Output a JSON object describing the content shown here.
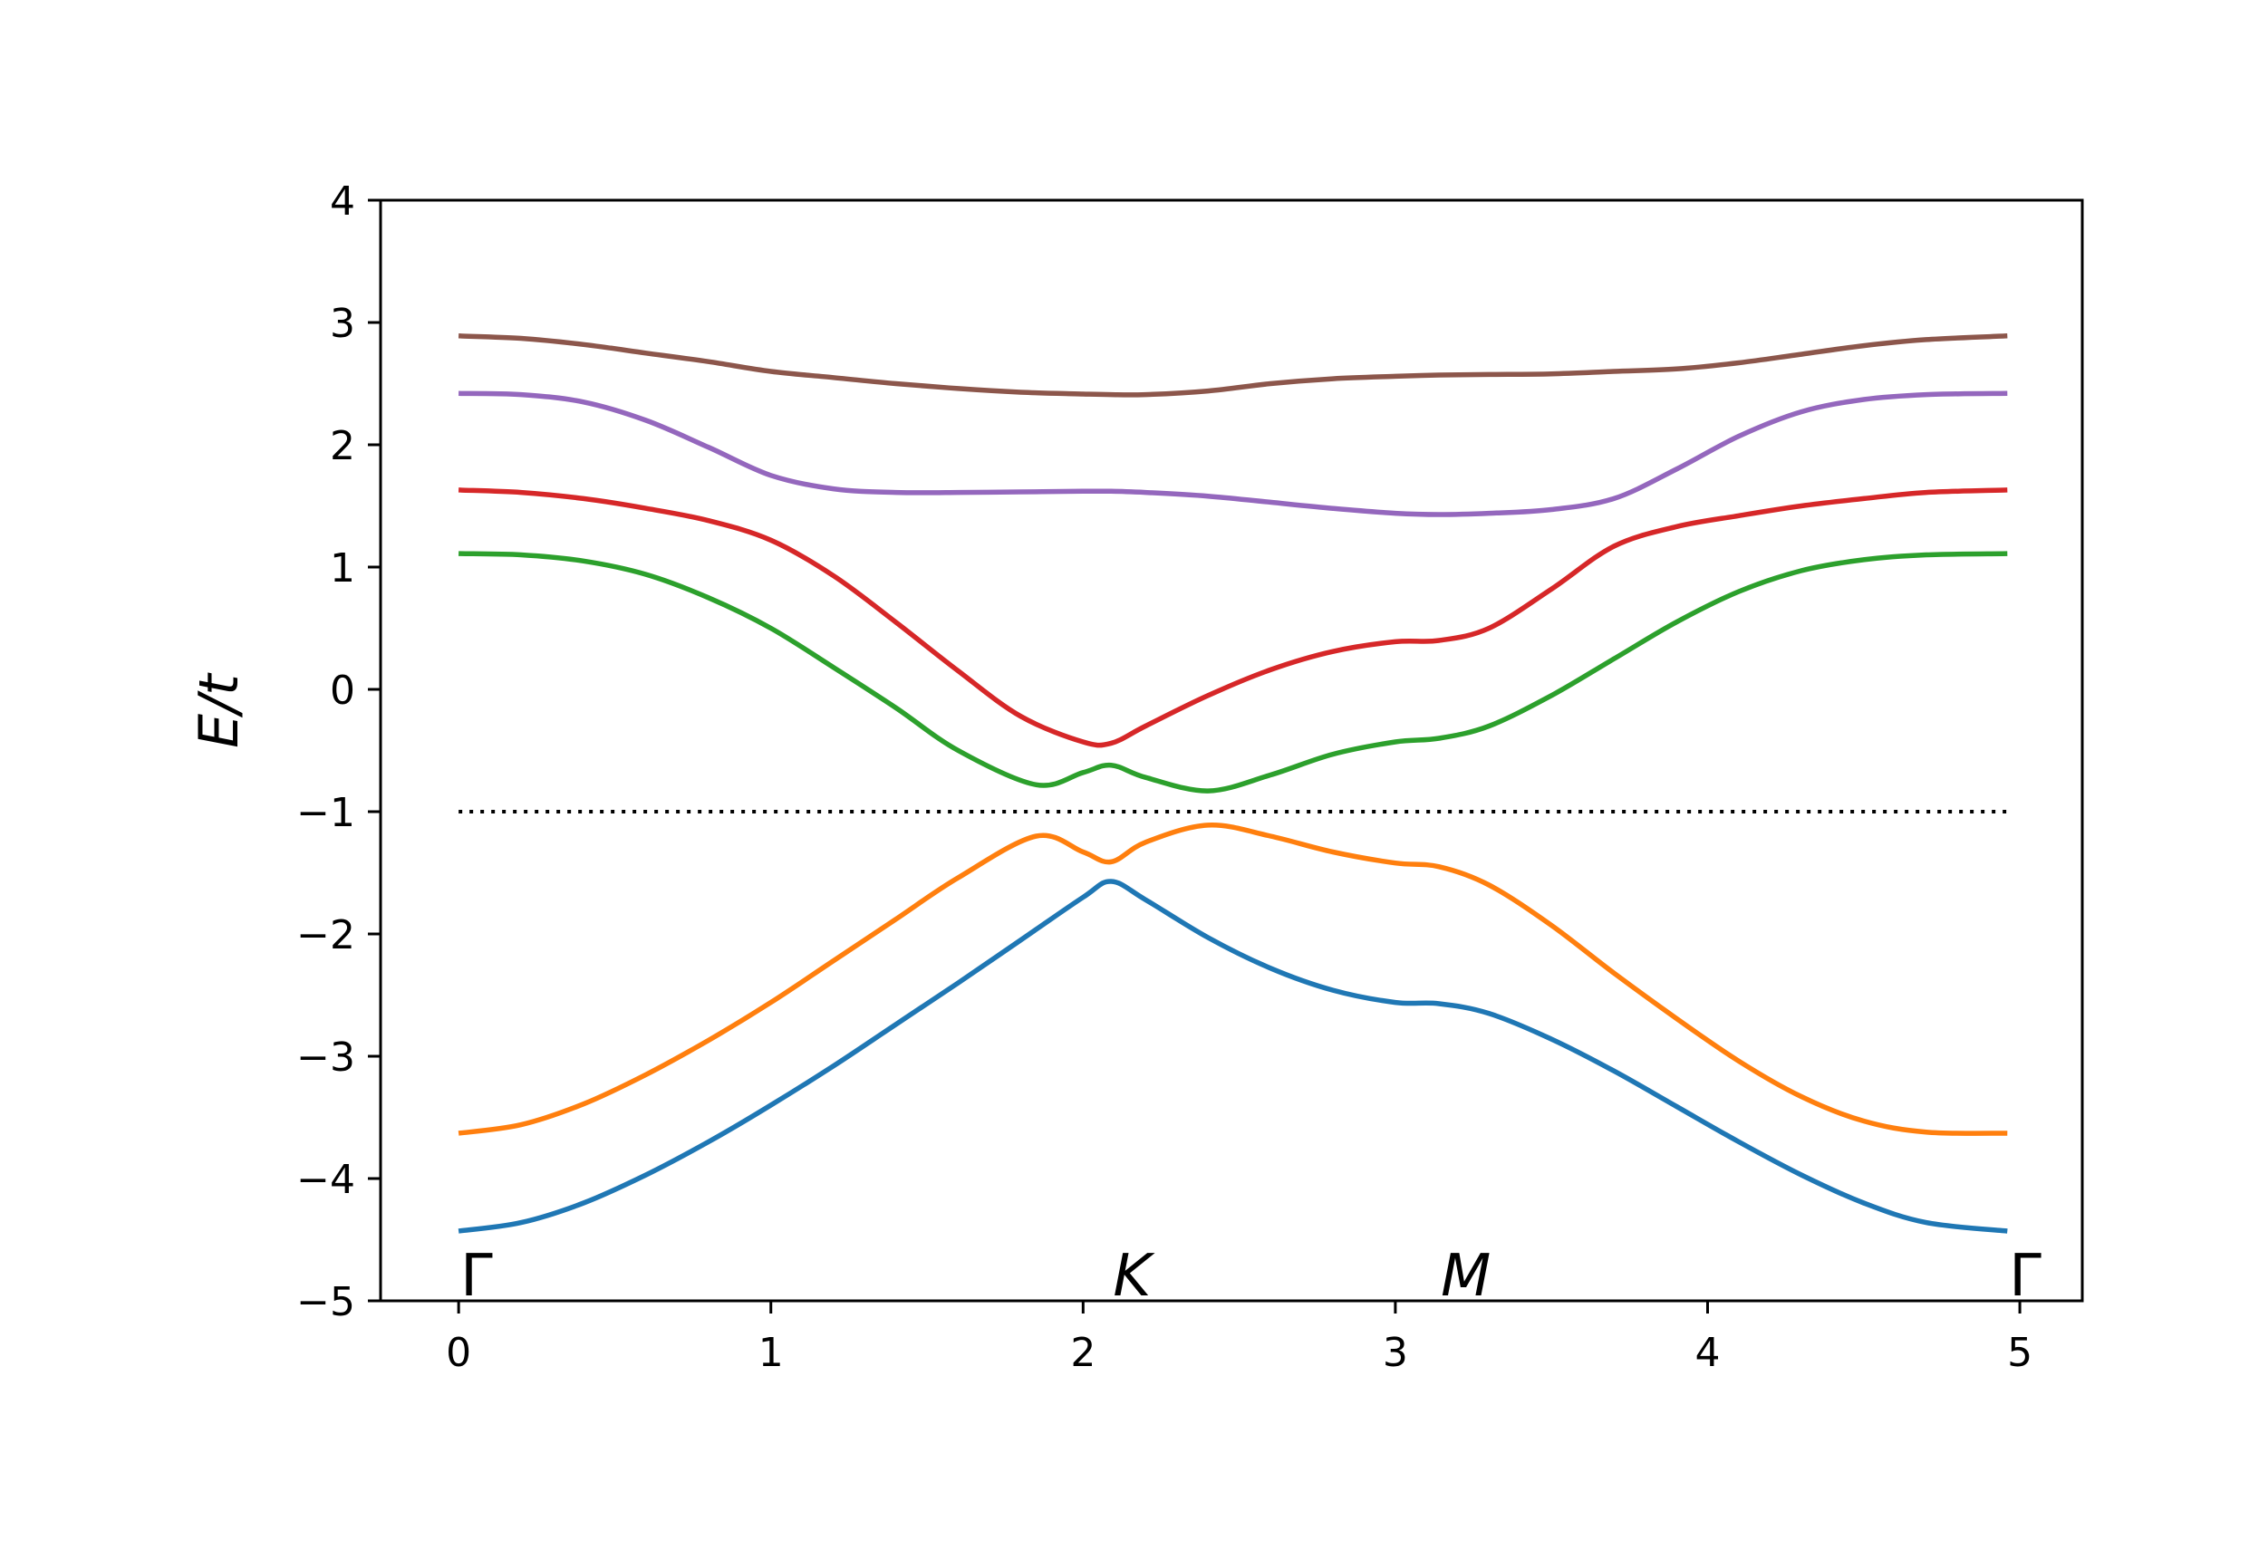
{
  "chart_data": {
    "type": "line",
    "title": "",
    "xlabel": "",
    "ylabel": "E/t",
    "xlim": [
      -0.25,
      5.2
    ],
    "ylim": [
      -5,
      4
    ],
    "xticks": [
      "0",
      "1",
      "2",
      "3",
      "4",
      "5"
    ],
    "yticks": [
      "−5",
      "−4",
      "−3",
      "−2",
      "−1",
      "0",
      "1",
      "2",
      "3",
      "4"
    ],
    "grid": false,
    "legend": "none",
    "kpoints": [
      {
        "label": "Γ",
        "x": 0.0
      },
      {
        "label": "K",
        "x": 2.09
      },
      {
        "label": "M",
        "x": 3.14
      },
      {
        "label": "Γ",
        "x": 4.96
      }
    ],
    "reference_line": {
      "y": -1.0,
      "x_range": [
        0.0,
        4.96
      ],
      "style": "dotted",
      "color": "#000000"
    },
    "series": [
      {
        "color": "#1f77b4",
        "x": [
          0.0,
          0.2,
          0.4,
          0.6,
          0.8,
          1.0,
          1.2,
          1.4,
          1.6,
          1.8,
          2.0,
          2.09,
          2.2,
          2.4,
          2.6,
          2.8,
          3.0,
          3.14,
          3.3,
          3.5,
          3.7,
          3.9,
          4.1,
          4.3,
          4.5,
          4.7,
          4.96
        ],
        "y": [
          -4.43,
          -4.36,
          -4.2,
          -3.97,
          -3.7,
          -3.4,
          -3.08,
          -2.74,
          -2.4,
          -2.05,
          -1.7,
          -1.57,
          -1.72,
          -2.03,
          -2.28,
          -2.46,
          -2.56,
          -2.57,
          -2.65,
          -2.86,
          -3.12,
          -3.41,
          -3.7,
          -3.97,
          -4.2,
          -4.36,
          -4.43
        ]
      },
      {
        "color": "#ff7f0e",
        "x": [
          0.0,
          0.2,
          0.4,
          0.6,
          0.8,
          1.0,
          1.2,
          1.4,
          1.6,
          1.85,
          2.0,
          2.09,
          2.2,
          2.4,
          2.6,
          2.8,
          3.0,
          3.14,
          3.3,
          3.5,
          3.7,
          3.9,
          4.1,
          4.3,
          4.5,
          4.7,
          4.96
        ],
        "y": [
          -3.63,
          -3.56,
          -3.39,
          -3.15,
          -2.87,
          -2.56,
          -2.22,
          -1.88,
          -1.54,
          -1.2,
          -1.33,
          -1.41,
          -1.25,
          -1.11,
          -1.2,
          -1.33,
          -1.42,
          -1.45,
          -1.6,
          -1.93,
          -2.32,
          -2.69,
          -3.04,
          -3.33,
          -3.53,
          -3.62,
          -3.63
        ]
      },
      {
        "color": "#2ca02c",
        "x": [
          0.0,
          0.2,
          0.4,
          0.6,
          0.8,
          1.0,
          1.2,
          1.4,
          1.6,
          1.85,
          2.0,
          2.09,
          2.2,
          2.4,
          2.6,
          2.8,
          3.0,
          3.14,
          3.3,
          3.5,
          3.7,
          3.9,
          4.1,
          4.3,
          4.5,
          4.7,
          4.96
        ],
        "y": [
          1.11,
          1.1,
          1.05,
          0.94,
          0.75,
          0.5,
          0.18,
          -0.15,
          -0.5,
          -0.78,
          -0.68,
          -0.62,
          -0.72,
          -0.83,
          -0.7,
          -0.53,
          -0.43,
          -0.4,
          -0.3,
          -0.05,
          0.25,
          0.55,
          0.8,
          0.97,
          1.06,
          1.1,
          1.11
        ]
      },
      {
        "color": "#d62728",
        "x": [
          0.0,
          0.2,
          0.4,
          0.6,
          0.8,
          1.0,
          1.2,
          1.4,
          1.6,
          1.8,
          2.0,
          2.09,
          2.2,
          2.4,
          2.6,
          2.8,
          3.0,
          3.14,
          3.3,
          3.5,
          3.7,
          3.9,
          4.1,
          4.3,
          4.5,
          4.7,
          4.96
        ],
        "y": [
          1.63,
          1.61,
          1.56,
          1.48,
          1.38,
          1.22,
          0.93,
          0.55,
          0.15,
          -0.22,
          -0.43,
          -0.44,
          -0.3,
          -0.05,
          0.16,
          0.31,
          0.39,
          0.4,
          0.5,
          0.82,
          1.17,
          1.33,
          1.42,
          1.5,
          1.56,
          1.61,
          1.63
        ]
      },
      {
        "color": "#9467bd",
        "x": [
          0.0,
          0.2,
          0.4,
          0.6,
          0.8,
          1.0,
          1.2,
          1.4,
          1.6,
          1.8,
          2.0,
          2.09,
          2.2,
          2.4,
          2.6,
          2.8,
          3.0,
          3.14,
          3.3,
          3.5,
          3.7,
          3.9,
          4.1,
          4.3,
          4.5,
          4.7,
          4.96
        ],
        "y": [
          2.42,
          2.41,
          2.35,
          2.2,
          1.98,
          1.75,
          1.64,
          1.61,
          1.61,
          1.615,
          1.62,
          1.62,
          1.61,
          1.58,
          1.53,
          1.48,
          1.44,
          1.43,
          1.44,
          1.47,
          1.56,
          1.8,
          2.07,
          2.27,
          2.37,
          2.41,
          2.42
        ]
      },
      {
        "color": "#8c564b",
        "x": [
          0.0,
          0.2,
          0.4,
          0.6,
          0.8,
          1.0,
          1.2,
          1.4,
          1.6,
          1.8,
          2.0,
          2.09,
          2.2,
          2.4,
          2.6,
          2.8,
          3.0,
          3.14,
          3.3,
          3.5,
          3.7,
          3.9,
          4.1,
          4.3,
          4.5,
          4.7,
          4.96
        ],
        "y": [
          2.89,
          2.87,
          2.82,
          2.75,
          2.68,
          2.6,
          2.55,
          2.5,
          2.46,
          2.43,
          2.415,
          2.41,
          2.41,
          2.44,
          2.5,
          2.54,
          2.56,
          2.57,
          2.575,
          2.58,
          2.6,
          2.62,
          2.67,
          2.74,
          2.81,
          2.86,
          2.89
        ]
      }
    ]
  }
}
